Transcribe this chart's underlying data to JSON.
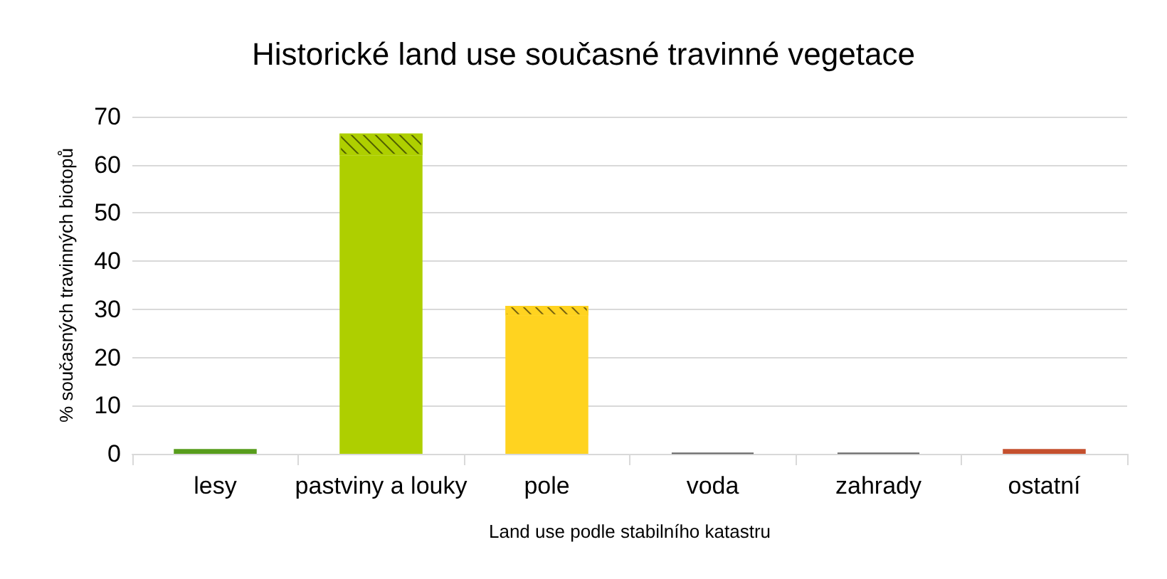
{
  "chart_data": {
    "type": "bar",
    "title": "Historické land use současné travinné vegetace",
    "xlabel": "Land use podle stabilního katastru",
    "ylabel": "% současných travinných biotopů",
    "categories": [
      "lesy",
      "pastviny a louky",
      "pole",
      "voda",
      "zahrady",
      "ostatní"
    ],
    "stacked": true,
    "series": [
      {
        "colors": [
          "#579d1c",
          "#aecf00",
          "#ffd320",
          "#666666",
          "#666666",
          "#c5502e"
        ],
        "values": [
          1.0,
          62.0,
          28.7,
          0.2,
          0.2,
          1.0
        ]
      },
      {
        "colors": [
          "#579d1c",
          "#aecf00",
          "#ffd320",
          "#666666",
          "#666666",
          "#c5502e"
        ],
        "values": [
          null,
          4.5,
          2.0,
          null,
          null,
          null
        ]
      }
    ],
    "ylim": [
      0,
      70
    ],
    "yticks": [
      0,
      10,
      20,
      30,
      40,
      50,
      60,
      70
    ],
    "grid": "y"
  }
}
